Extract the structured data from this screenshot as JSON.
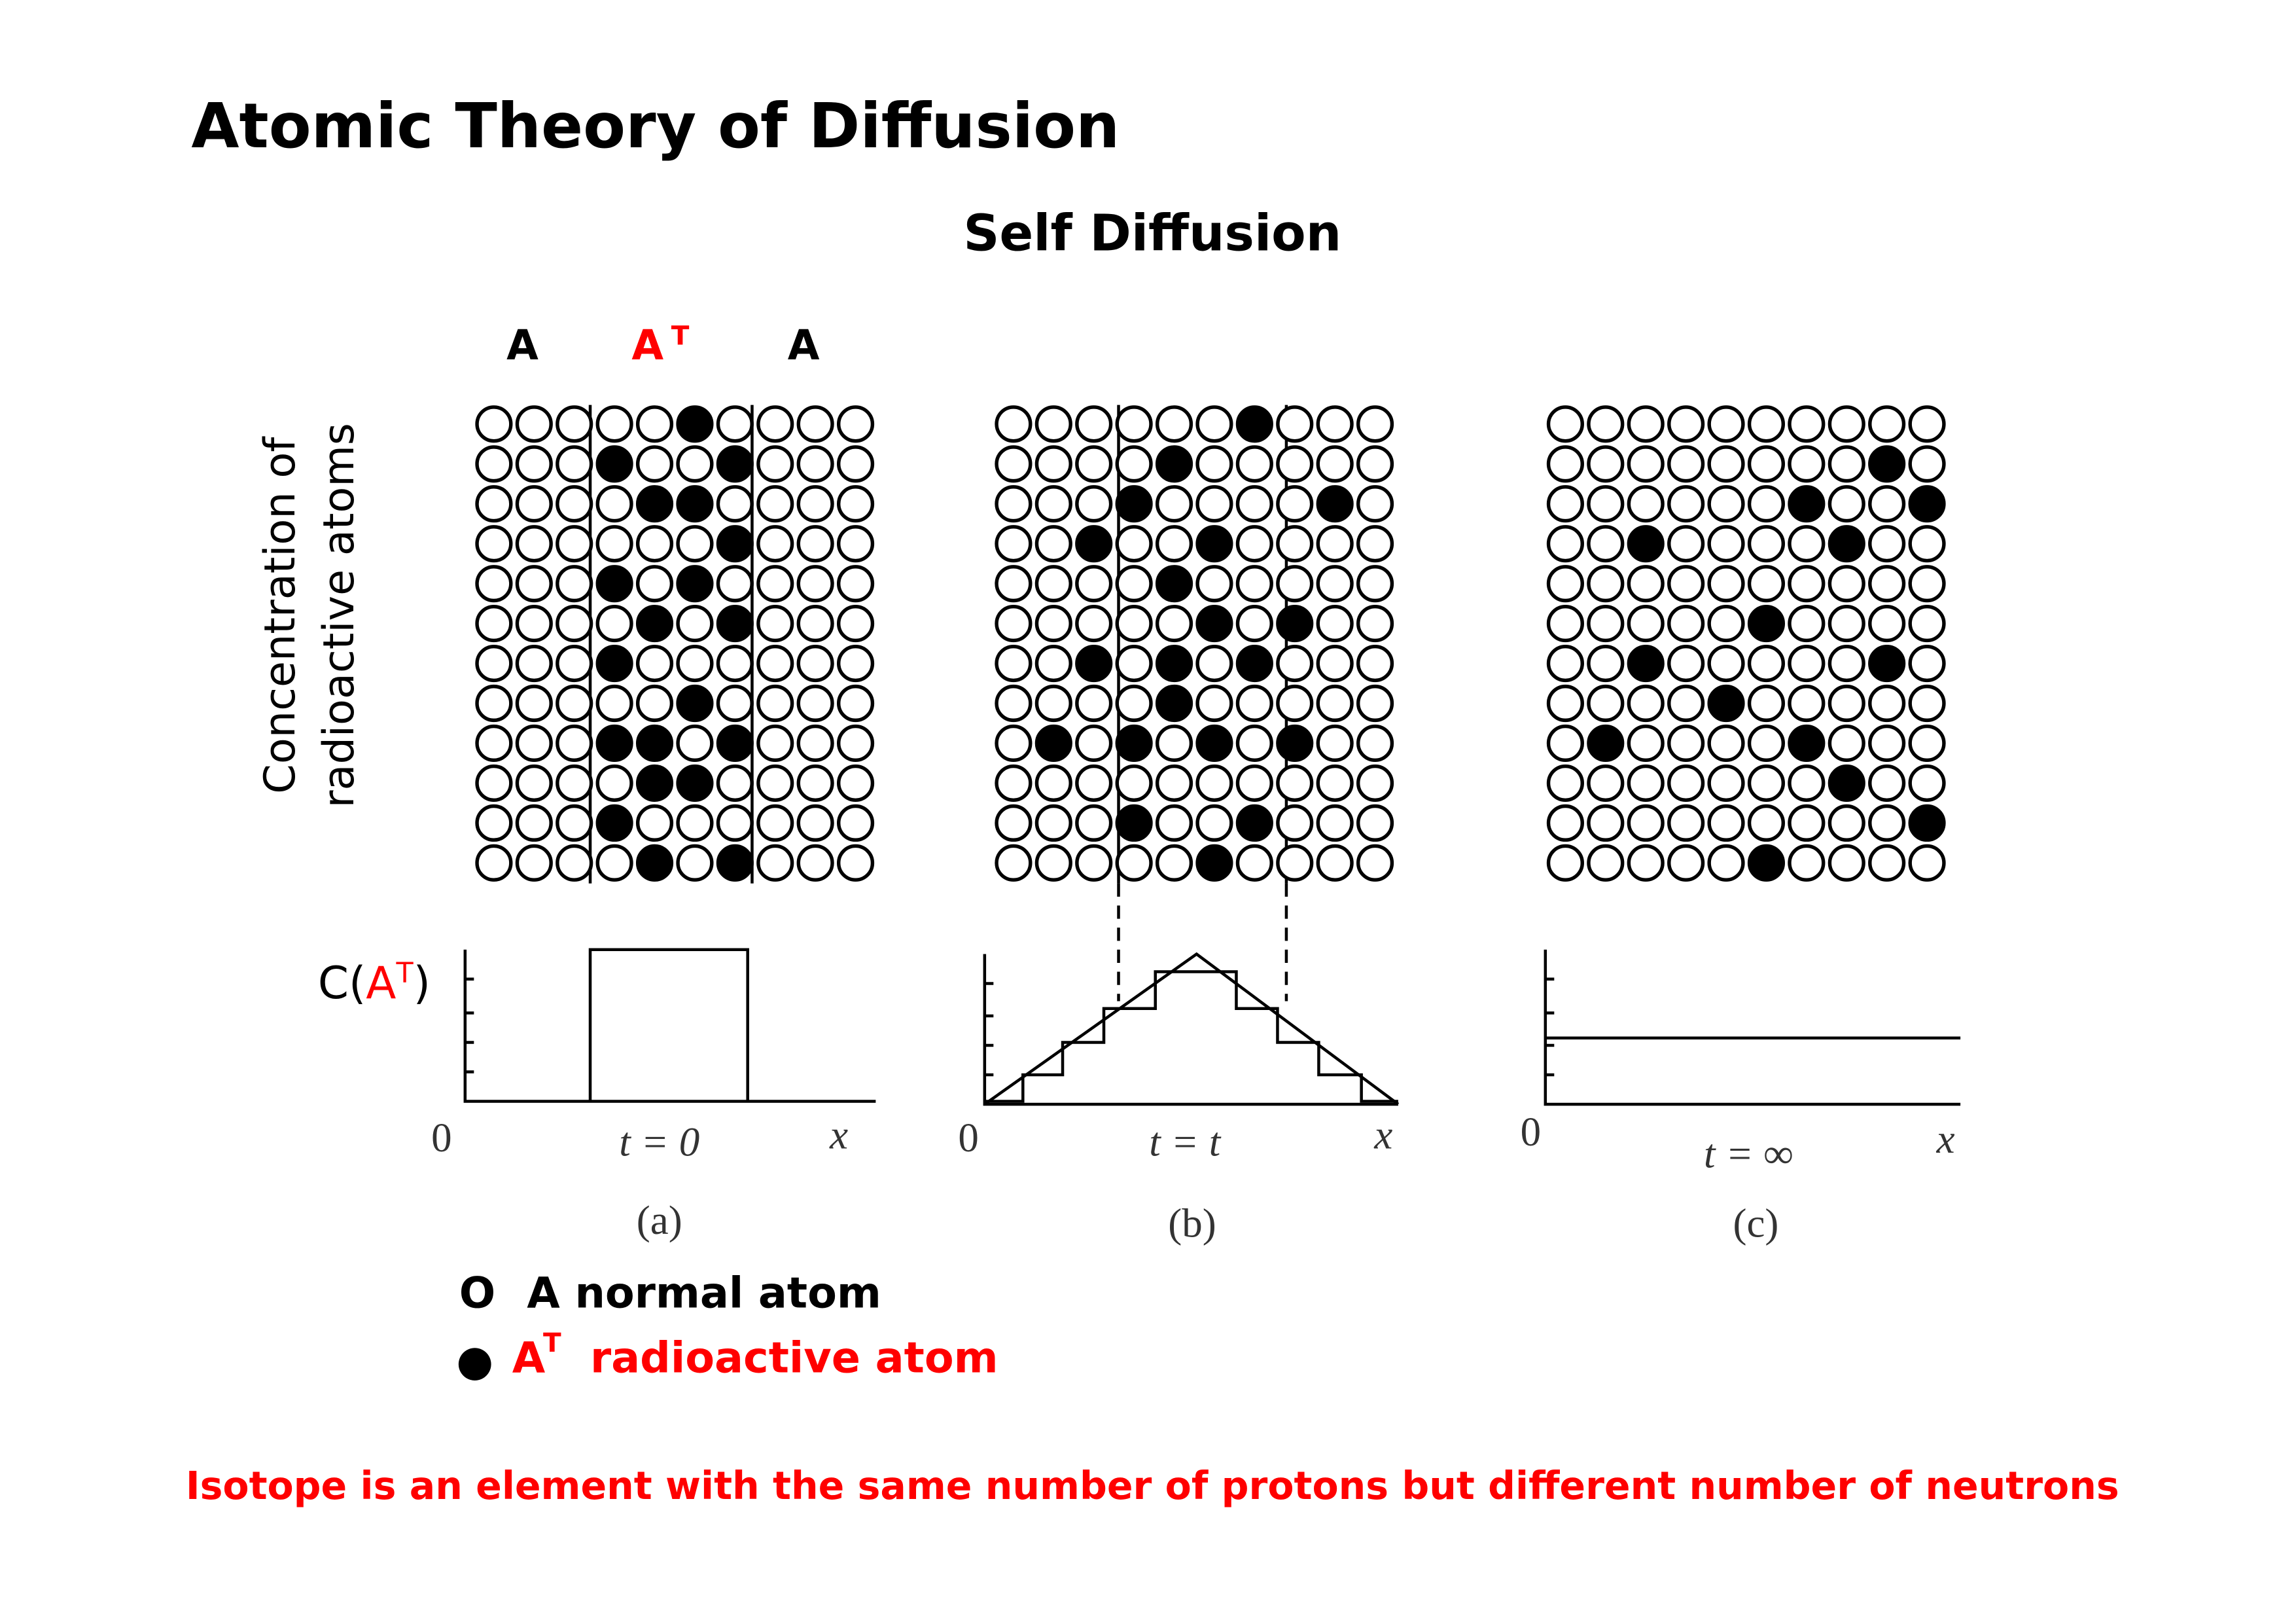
{
  "title": "Atomic Theory of Diffusion",
  "subtitle": "Self Diffusion",
  "region_labels": [
    {
      "text": "A"
    },
    {
      "text": "A",
      "sup": "T"
    },
    {
      "text": "A"
    }
  ],
  "y_axis_label": [
    "Concentration of",
    "radioactive atoms"
  ],
  "concentration_label": {
    "prefix": "C(",
    "species": "A",
    "sup": "T",
    "suffix": ")"
  },
  "panels": [
    {
      "origin": "0",
      "time": "t = 0",
      "axis": "x",
      "caption": "(a)"
    },
    {
      "origin": "0",
      "time": "t = t",
      "axis": "x",
      "caption": "(b)"
    },
    {
      "origin": "0",
      "time": "t = ∞",
      "axis": "x",
      "caption": "(c)"
    }
  ],
  "legend": [
    {
      "symbol": "O",
      "text": "A normal atom"
    },
    {
      "symbol": "●",
      "species": "A",
      "sup": "T",
      "text": "radioactive atom"
    }
  ],
  "footnote": "Isotope is an element with the same number of protons but different number of neutrons"
}
